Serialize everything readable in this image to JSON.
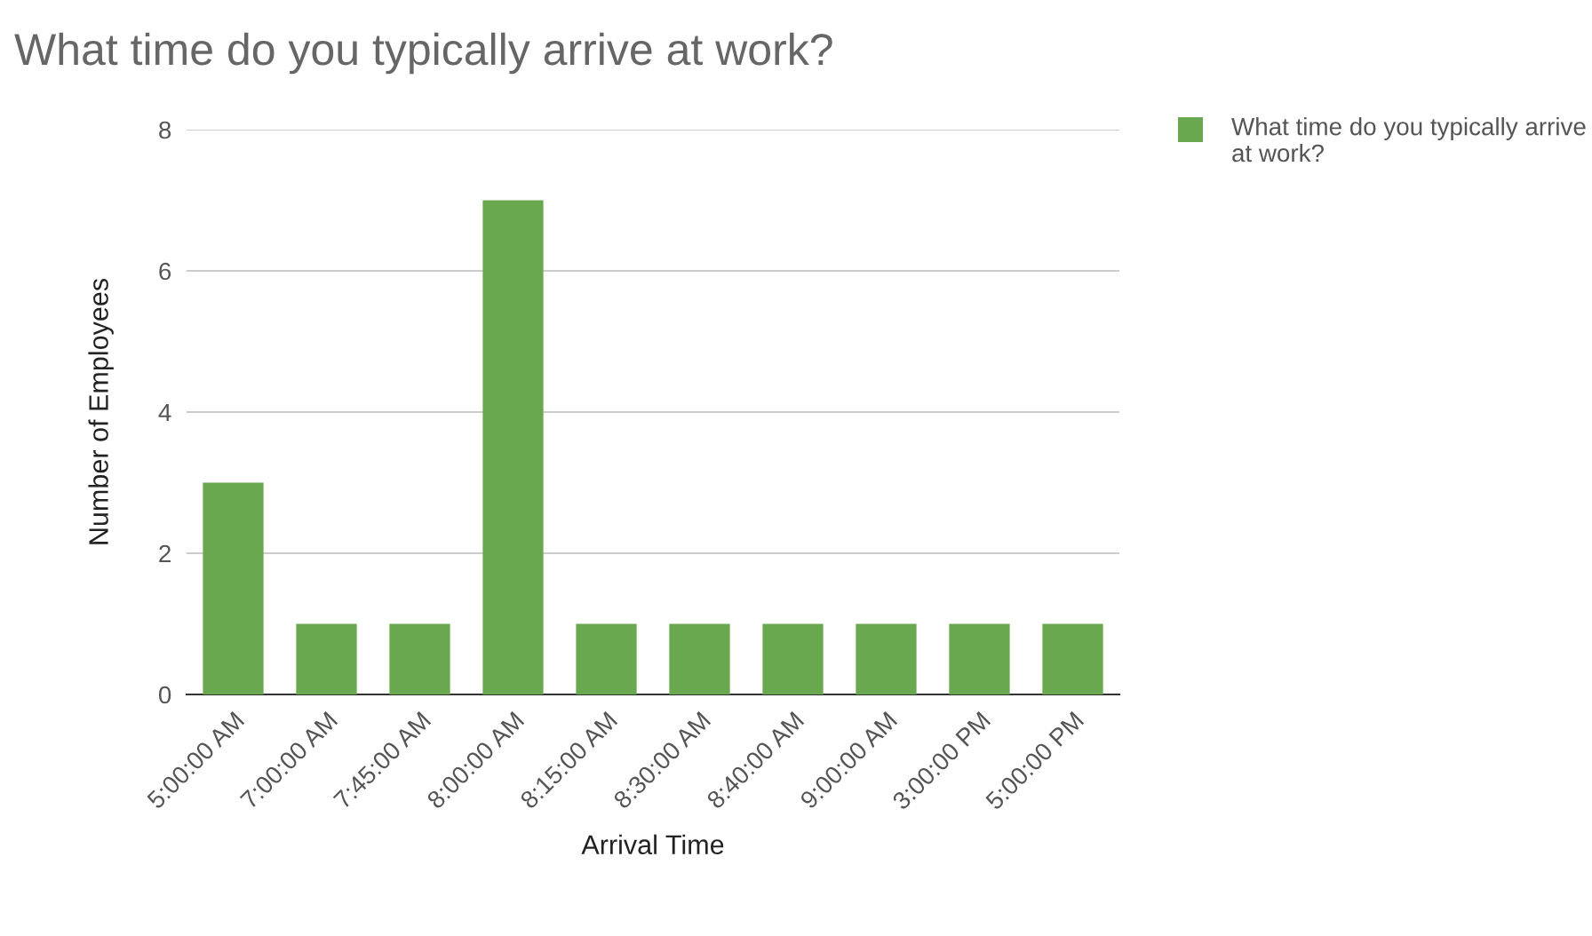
{
  "chart_data": {
    "type": "bar",
    "title": "What time do you typically arrive at work?",
    "xlabel": "Arrival Time",
    "ylabel": "Number of Employees",
    "categories": [
      "5:00:00 AM",
      "7:00:00 AM",
      "7:45:00 AM",
      "8:00:00 AM",
      "8:15:00 AM",
      "8:30:00 AM",
      "8:40:00 AM",
      "9:00:00 AM",
      "3:00:00 PM",
      "5:00:00 PM"
    ],
    "series": [
      {
        "name": "What time do you typically arrive at work?",
        "color": "#6aa84f",
        "values": [
          3,
          1,
          1,
          7,
          1,
          1,
          1,
          1,
          1,
          1
        ]
      }
    ],
    "ylim": [
      0,
      8
    ],
    "yticks": [
      0,
      2,
      4,
      6,
      8
    ],
    "grid": "y",
    "legend": "top right"
  }
}
